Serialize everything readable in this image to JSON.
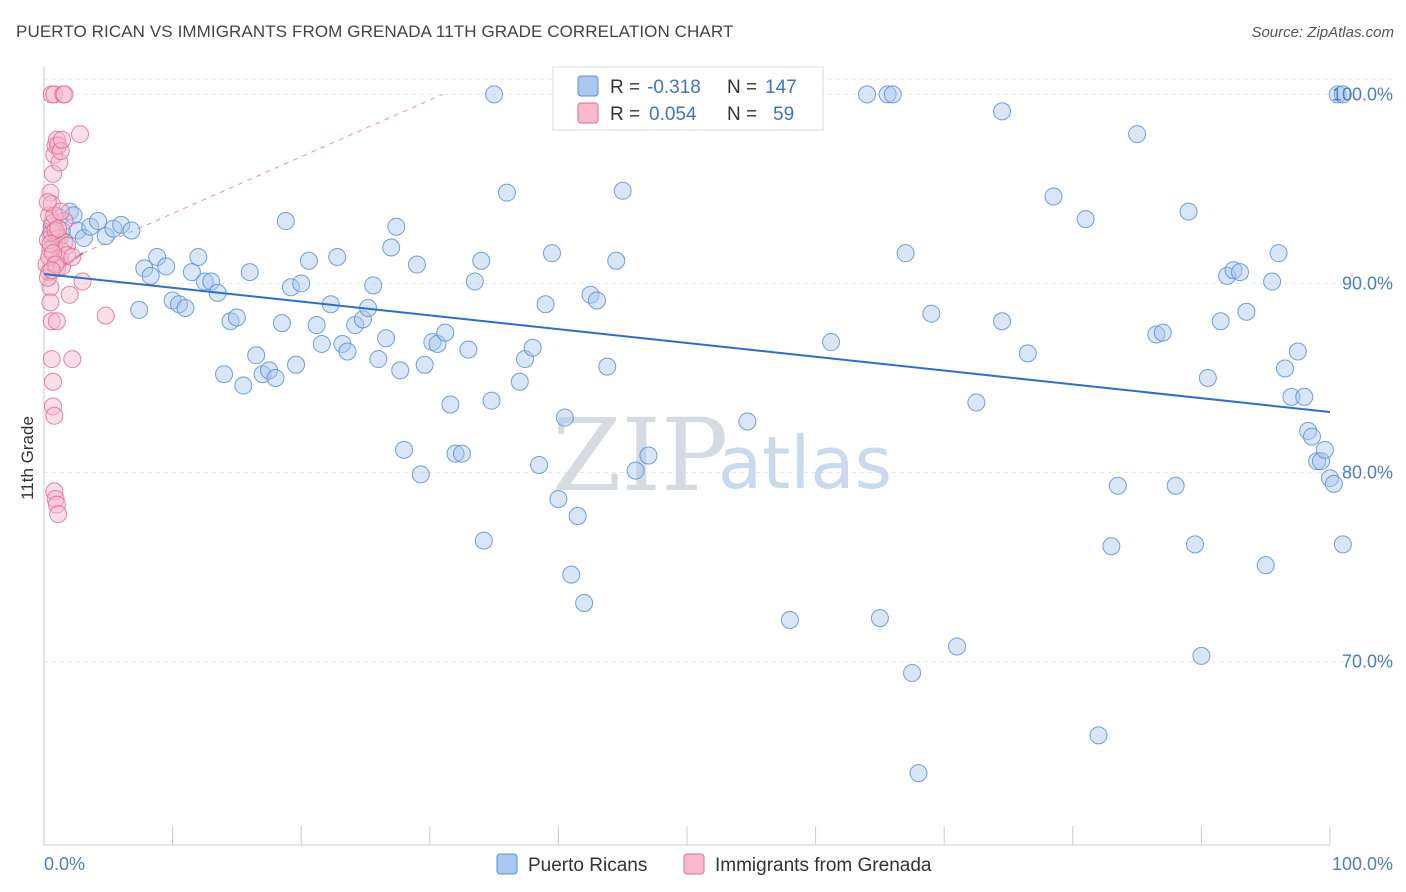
{
  "header": {
    "title": "PUERTO RICAN VS IMMIGRANTS FROM GRENADA 11TH GRADE CORRELATION CHART",
    "source": "Source: ZipAtlas.com"
  },
  "watermark": {
    "zip": "ZIP",
    "atlas": "atlas"
  },
  "colors": {
    "blue_fill": "#a9c8ef",
    "blue_stroke": "#5b8fd6",
    "blue_line": "#2b6fce",
    "pink_fill": "#f7b9cc",
    "pink_stroke": "#e06d92",
    "pink_line": "#d9436f",
    "grid": "#e3e7ee",
    "tick_label": "#4a7ec7"
  },
  "legend": {
    "rows": [
      {
        "r_label": "R =",
        "r_value": "-0.318",
        "n_label": "N =",
        "n_value": "147"
      },
      {
        "r_label": "R =",
        "r_value": "0.054",
        "n_label": "N =",
        "n_value": "59"
      }
    ]
  },
  "chart_data": {
    "type": "scatter",
    "title": "PUERTO RICAN VS IMMIGRANTS FROM GRENADA 11TH GRADE CORRELATION CHART",
    "ylabel": "11th Grade",
    "xlabel": "",
    "xlim": [
      0,
      100
    ],
    "ylim": [
      60.3,
      101.5
    ],
    "x_tick_labels": [
      "0.0%",
      "100.0%"
    ],
    "y_ticks": [
      70,
      80,
      90,
      100
    ],
    "y_tick_labels": [
      "70.0%",
      "80.0%",
      "90.0%",
      "100.0%"
    ],
    "grid": true,
    "legend_position": "top-center",
    "series": [
      {
        "name": "Puerto Ricans",
        "r": -0.318,
        "n": 147,
        "trend": {
          "x": [
            0,
            100
          ],
          "y": [
            90.5,
            83.2
          ]
        },
        "points": [
          [
            0.5,
            92.6
          ],
          [
            0.6,
            93.0
          ],
          [
            0.8,
            92.0
          ],
          [
            1.0,
            92.4
          ],
          [
            1.2,
            93.5
          ],
          [
            1.4,
            92.8
          ],
          [
            1.6,
            92.2
          ],
          [
            2.0,
            93.8
          ],
          [
            2.3,
            93.6
          ],
          [
            2.6,
            92.8
          ],
          [
            3.1,
            92.4
          ],
          [
            3.6,
            93.0
          ],
          [
            4.2,
            93.3
          ],
          [
            4.8,
            92.5
          ],
          [
            5.4,
            92.9
          ],
          [
            6.0,
            93.1
          ],
          [
            6.8,
            92.8
          ],
          [
            7.4,
            88.6
          ],
          [
            7.8,
            90.8
          ],
          [
            8.3,
            90.4
          ],
          [
            8.8,
            91.4
          ],
          [
            9.5,
            90.9
          ],
          [
            10.0,
            89.1
          ],
          [
            10.5,
            88.9
          ],
          [
            11.0,
            88.7
          ],
          [
            11.5,
            90.6
          ],
          [
            12.0,
            91.4
          ],
          [
            12.5,
            90.1
          ],
          [
            13.0,
            90.1
          ],
          [
            13.5,
            89.5
          ],
          [
            14.0,
            85.2
          ],
          [
            14.5,
            88.0
          ],
          [
            15.0,
            88.2
          ],
          [
            15.5,
            84.6
          ],
          [
            16.0,
            90.6
          ],
          [
            16.5,
            86.2
          ],
          [
            17.0,
            85.2
          ],
          [
            17.5,
            85.4
          ],
          [
            18.0,
            85.0
          ],
          [
            18.5,
            87.9
          ],
          [
            18.8,
            93.3
          ],
          [
            19.2,
            89.8
          ],
          [
            19.6,
            85.7
          ],
          [
            20.0,
            90.0
          ],
          [
            20.6,
            91.2
          ],
          [
            21.2,
            87.8
          ],
          [
            21.6,
            86.8
          ],
          [
            22.3,
            88.9
          ],
          [
            22.8,
            91.4
          ],
          [
            23.2,
            86.8
          ],
          [
            23.6,
            86.4
          ],
          [
            24.2,
            87.8
          ],
          [
            24.8,
            88.1
          ],
          [
            25.2,
            88.7
          ],
          [
            25.6,
            89.9
          ],
          [
            26.0,
            86.0
          ],
          [
            26.6,
            87.1
          ],
          [
            27.0,
            91.9
          ],
          [
            27.4,
            93.0
          ],
          [
            27.7,
            85.4
          ],
          [
            28.0,
            81.2
          ],
          [
            29.0,
            91.0
          ],
          [
            29.3,
            79.9
          ],
          [
            29.6,
            85.7
          ],
          [
            30.2,
            86.9
          ],
          [
            30.6,
            86.8
          ],
          [
            31.2,
            87.4
          ],
          [
            31.6,
            83.6
          ],
          [
            32.0,
            81.0
          ],
          [
            32.5,
            81.0
          ],
          [
            33.0,
            86.5
          ],
          [
            33.5,
            90.1
          ],
          [
            34.0,
            91.2
          ],
          [
            34.2,
            76.4
          ],
          [
            34.8,
            83.8
          ],
          [
            35.0,
            100.0
          ],
          [
            36.0,
            94.8
          ],
          [
            37.0,
            84.8
          ],
          [
            37.4,
            86.0
          ],
          [
            38.0,
            86.6
          ],
          [
            38.5,
            80.4
          ],
          [
            39.0,
            88.9
          ],
          [
            39.5,
            91.6
          ],
          [
            40.0,
            78.6
          ],
          [
            40.5,
            82.9
          ],
          [
            41.0,
            74.6
          ],
          [
            41.5,
            77.7
          ],
          [
            42.0,
            73.1
          ],
          [
            42.5,
            89.4
          ],
          [
            43.0,
            89.1
          ],
          [
            43.8,
            85.6
          ],
          [
            44.5,
            91.2
          ],
          [
            45.0,
            94.9
          ],
          [
            46.0,
            80.1
          ],
          [
            47.0,
            80.9
          ],
          [
            54.7,
            82.7
          ],
          [
            58.0,
            72.2
          ],
          [
            61.2,
            86.9
          ],
          [
            64.0,
            100.0
          ],
          [
            65.0,
            72.3
          ],
          [
            65.6,
            100.0
          ],
          [
            66.0,
            100.0
          ],
          [
            67.0,
            91.6
          ],
          [
            67.5,
            69.4
          ],
          [
            68.0,
            64.1
          ],
          [
            69.0,
            88.4
          ],
          [
            71.0,
            70.8
          ],
          [
            72.5,
            83.7
          ],
          [
            74.5,
            88.0
          ],
          [
            76.5,
            86.3
          ],
          [
            78.5,
            94.6
          ],
          [
            81.0,
            93.4
          ],
          [
            82.0,
            66.1
          ],
          [
            83.0,
            76.1
          ],
          [
            83.5,
            79.3
          ],
          [
            85.0,
            97.9
          ],
          [
            86.5,
            87.3
          ],
          [
            87.0,
            87.4
          ],
          [
            88.0,
            79.3
          ],
          [
            89.0,
            93.8
          ],
          [
            89.5,
            76.2
          ],
          [
            90.0,
            70.3
          ],
          [
            90.5,
            85.0
          ],
          [
            91.5,
            88.0
          ],
          [
            92.0,
            90.4
          ],
          [
            92.5,
            90.7
          ],
          [
            93.0,
            90.6
          ],
          [
            93.5,
            88.5
          ],
          [
            95.0,
            75.1
          ],
          [
            95.5,
            90.1
          ],
          [
            96.0,
            91.6
          ],
          [
            96.5,
            85.5
          ],
          [
            97.0,
            84.0
          ],
          [
            97.5,
            86.4
          ],
          [
            98.0,
            84.0
          ],
          [
            98.3,
            82.2
          ],
          [
            98.6,
            81.9
          ],
          [
            99.0,
            80.6
          ],
          [
            99.3,
            80.6
          ],
          [
            99.6,
            81.2
          ],
          [
            100.0,
            79.7
          ],
          [
            100.3,
            79.4
          ],
          [
            101.0,
            76.2
          ],
          [
            100.6,
            100.0
          ],
          [
            101.0,
            100.0
          ],
          [
            74.5,
            99.1
          ],
          [
            46.5,
            99.2
          ]
        ]
      },
      {
        "name": "Immigrants from Grenada",
        "r": 0.054,
        "n": 59,
        "trend": {
          "x": [
            0,
            3.0
          ],
          "y": [
            90.2,
            91.6
          ]
        },
        "dashed_extension": {
          "x": [
            3.0,
            31.0
          ],
          "y": [
            91.6,
            100.0
          ]
        },
        "points": [
          [
            0.2,
            91.0
          ],
          [
            0.3,
            92.3
          ],
          [
            0.4,
            90.6
          ],
          [
            0.5,
            89.8
          ],
          [
            0.5,
            89.0
          ],
          [
            0.6,
            88.0
          ],
          [
            0.6,
            86.0
          ],
          [
            0.7,
            84.8
          ],
          [
            0.7,
            83.5
          ],
          [
            0.8,
            83.0
          ],
          [
            0.8,
            79.0
          ],
          [
            0.9,
            78.6
          ],
          [
            1.0,
            78.3
          ],
          [
            1.1,
            77.8
          ],
          [
            0.4,
            93.6
          ],
          [
            0.5,
            94.8
          ],
          [
            0.6,
            94.2
          ],
          [
            0.7,
            95.8
          ],
          [
            0.8,
            96.8
          ],
          [
            0.9,
            97.3
          ],
          [
            1.0,
            97.6
          ],
          [
            1.1,
            97.3
          ],
          [
            1.2,
            96.4
          ],
          [
            1.3,
            97.0
          ],
          [
            1.4,
            97.6
          ],
          [
            0.6,
            100.0
          ],
          [
            0.8,
            100.0
          ],
          [
            1.5,
            100.0
          ],
          [
            1.6,
            100.0
          ],
          [
            2.8,
            97.9
          ],
          [
            1.0,
            92.6
          ],
          [
            1.2,
            92.4
          ],
          [
            1.4,
            91.7
          ],
          [
            1.6,
            93.3
          ],
          [
            1.8,
            92.0
          ],
          [
            0.5,
            91.8
          ],
          [
            0.6,
            92.7
          ],
          [
            0.7,
            93.2
          ],
          [
            0.8,
            93.6
          ],
          [
            0.9,
            92.8
          ],
          [
            1.0,
            90.8
          ],
          [
            1.2,
            91.3
          ],
          [
            1.4,
            90.9
          ],
          [
            1.8,
            91.5
          ],
          [
            2.2,
            91.4
          ],
          [
            2.0,
            89.4
          ],
          [
            2.2,
            86.0
          ],
          [
            3.0,
            90.1
          ],
          [
            4.8,
            88.3
          ],
          [
            1.0,
            88.0
          ],
          [
            0.3,
            90.3
          ],
          [
            0.4,
            91.4
          ],
          [
            0.5,
            92.1
          ],
          [
            0.7,
            91.6
          ],
          [
            0.9,
            91.0
          ],
          [
            1.1,
            92.9
          ],
          [
            1.3,
            93.8
          ],
          [
            0.3,
            94.3
          ],
          [
            0.6,
            90.7
          ]
        ]
      }
    ]
  },
  "bottom_legend": {
    "items": [
      "Puerto Ricans",
      "Immigrants from Grenada"
    ]
  }
}
